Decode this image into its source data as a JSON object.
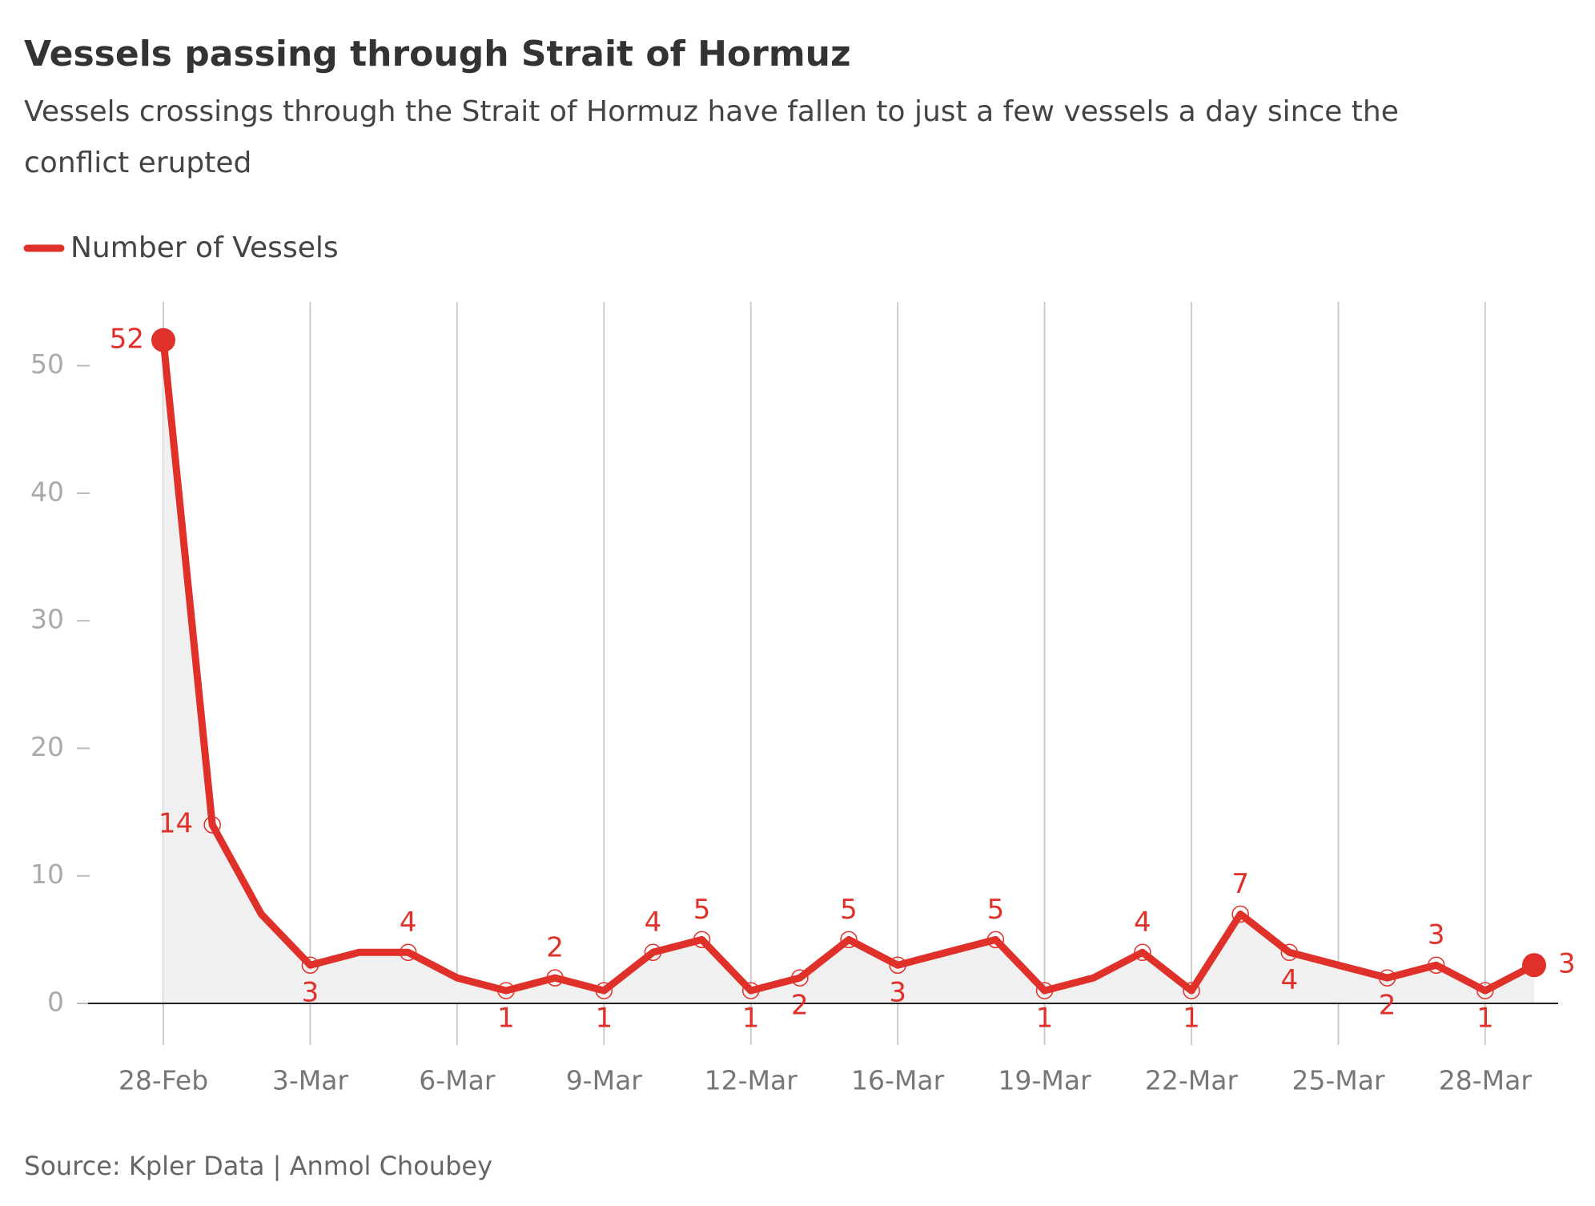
{
  "chart_data": {
    "type": "line",
    "title": "Vessels passing through Strait of Hormuz",
    "subtitle": [
      "Vessels crossings through the Strait of Hormuz have fallen to just a few vessels a day since the",
      "conflict erupted"
    ],
    "source": "Source: Kpler Data  | Anmol Choubey",
    "categories": [
      "28-Feb",
      null,
      null,
      "3-Mar",
      null,
      null,
      "6-Mar",
      null,
      null,
      "9-Mar",
      null,
      null,
      "12-Mar",
      null,
      null,
      "16-Mar",
      null,
      null,
      "19-Mar",
      null,
      null,
      "22-Mar",
      null,
      null,
      "25-Mar",
      null,
      null,
      "28-Mar",
      null
    ],
    "series": [
      {
        "name": "Number of Vessels",
        "color": "#e0302a",
        "values": [
          52,
          14,
          7,
          3,
          4,
          4,
          2,
          1,
          2,
          1,
          4,
          5,
          1,
          2,
          5,
          3,
          4,
          5,
          1,
          2,
          4,
          1,
          7,
          4,
          3,
          2,
          3,
          1,
          3
        ],
        "value_labels": [
          "52",
          "14",
          null,
          "3",
          null,
          "4",
          null,
          "1",
          "2",
          "1",
          "4",
          "5",
          "1",
          "2",
          "5",
          "3",
          null,
          "5",
          "1",
          null,
          "4",
          "1",
          "7",
          "4",
          null,
          "2",
          "3",
          "1",
          "3"
        ]
      }
    ],
    "ylim": [
      0,
      55
    ],
    "yticks": [
      0,
      10,
      20,
      30,
      40,
      50
    ],
    "area_color": "#f0f0f0",
    "grid": true
  }
}
